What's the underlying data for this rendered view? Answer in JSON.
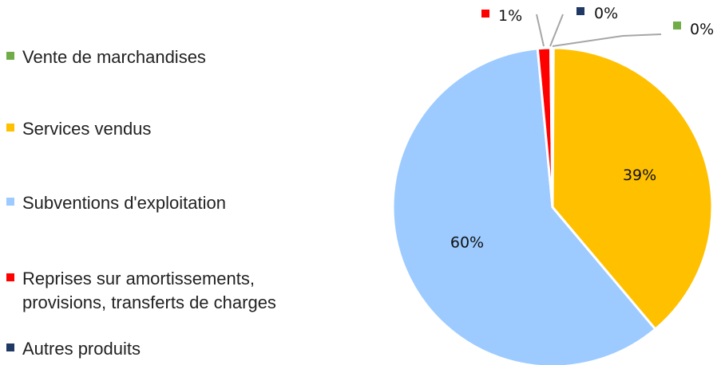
{
  "chart_data": {
    "type": "pie",
    "categories": [
      "Vente de marchandises",
      "Services vendus",
      "Subventions d'exploitation",
      "Reprises sur amortissements,\nprovisions, transferts de charges",
      "Autres produits"
    ],
    "values": [
      0.1,
      39,
      60,
      1.3,
      0.2
    ],
    "labels": [
      "0%",
      "39%",
      "60%",
      "1%",
      "0%"
    ],
    "colors": [
      "#70ad47",
      "#ffc000",
      "#9dcbff",
      "#ff0000",
      "#1f3864"
    ],
    "legend_position": "left",
    "start_angle_deg": 0,
    "direction": "clockwise"
  }
}
